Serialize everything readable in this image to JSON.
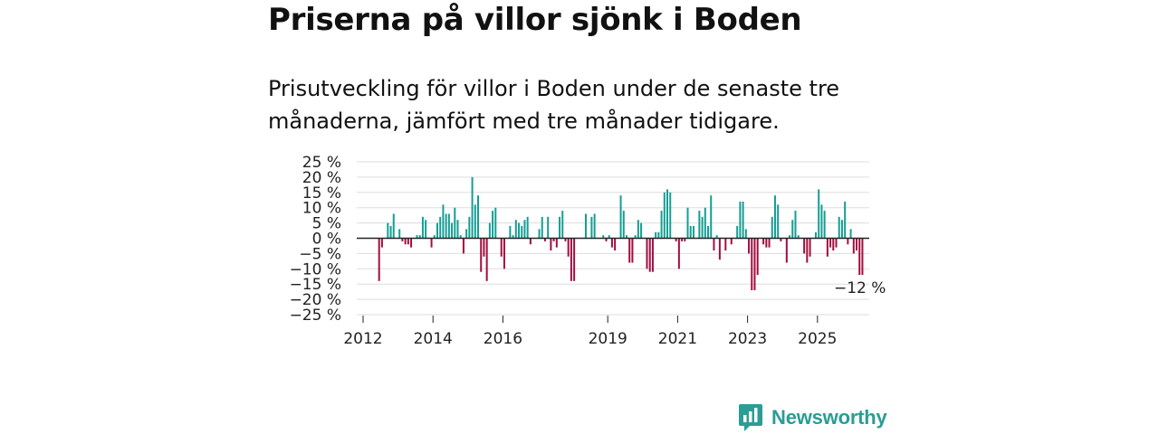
{
  "header": {
    "title": "Priserna på villor sjönk i Boden",
    "subtitle": "Prisutveckling för villor i Boden under de senaste tre månaderna, jämfört med tre månader tidigare."
  },
  "colors": {
    "positive": "#139e93",
    "negative": "#a30d3d",
    "grid": "#dddddd",
    "axis": "#222222",
    "brand": "#2a9d95"
  },
  "chart_data": {
    "type": "bar",
    "title": "Priserna på villor sjönk i Boden",
    "xlabel": "",
    "ylabel": "",
    "x_start": 2012.0,
    "x_step": 0.0833,
    "ylim": [
      -25,
      25
    ],
    "yticks": [
      25,
      20,
      15,
      10,
      5,
      0,
      -5,
      -10,
      -15,
      -20,
      -25
    ],
    "ytick_labels": [
      "25 %",
      "20 %",
      "15 %",
      "10 %",
      "5 %",
      "0 %",
      "−5 %",
      "−10 %",
      "−15 %",
      "−20 %",
      "−25 %"
    ],
    "xticks": [
      2012,
      2014,
      2016,
      2019,
      2021,
      2023,
      2025
    ],
    "xtick_labels": [
      "2012",
      "2014",
      "2016",
      "2019",
      "2021",
      "2023",
      "2025"
    ],
    "grid": true,
    "annotation": {
      "label": "−12 %",
      "value": -12
    },
    "values": [
      0,
      0,
      0,
      0,
      0,
      -14,
      -3,
      0,
      5,
      4,
      8,
      0,
      3,
      -1,
      -2,
      -2,
      -3,
      0,
      1,
      1,
      7,
      6,
      0,
      -3,
      1,
      5,
      7,
      11,
      8,
      8,
      5,
      10,
      6,
      1,
      -5,
      3,
      7,
      20,
      11,
      14,
      -11,
      -6,
      -14,
      5,
      9,
      10,
      0,
      -6,
      -10,
      0,
      4,
      1,
      6,
      5,
      4,
      6,
      7,
      -2,
      0,
      0,
      3,
      7,
      -1,
      7,
      -4,
      -1,
      -3,
      7,
      9,
      -1,
      -6,
      -14,
      -14,
      0,
      0,
      0,
      8,
      0,
      7,
      8,
      0,
      0,
      1,
      -1,
      1,
      -3,
      -4,
      0,
      14,
      9,
      1,
      -8,
      -8,
      1,
      6,
      5,
      0,
      -10,
      -11,
      -11,
      2,
      2,
      9,
      15,
      16,
      15,
      0,
      -1,
      -10,
      -1,
      -1,
      10,
      4,
      4,
      0,
      9,
      7,
      10,
      4,
      14,
      -4,
      1,
      -7,
      0,
      -4,
      0,
      -2,
      0,
      4,
      12,
      12,
      3,
      -5,
      -17,
      -17,
      -12,
      0,
      -2,
      -3,
      -3,
      7,
      14,
      11,
      -1,
      0,
      -8,
      1,
      6,
      9,
      1,
      0,
      -5,
      -8,
      -6,
      0,
      2,
      16,
      11,
      9,
      -6,
      -3,
      -4,
      -3,
      7,
      6,
      12,
      -2,
      3,
      -5,
      -4,
      -12,
      -12
    ]
  },
  "branding": {
    "name": "Newsworthy"
  }
}
